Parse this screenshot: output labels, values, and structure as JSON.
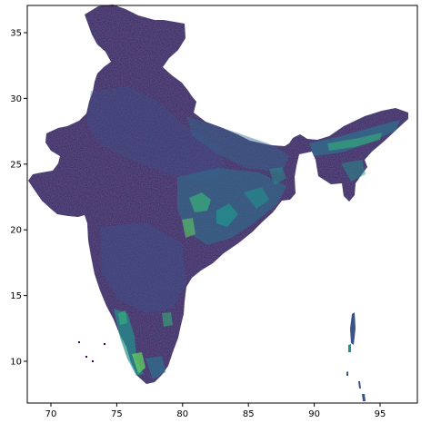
{
  "plot": {
    "type": "raster-map",
    "colormap": "viridis",
    "colors": {
      "dark": "#440154",
      "mid_dark": "#3b528b",
      "mid": "#21918c",
      "light": "#5ec962",
      "bright": "#fde725",
      "background": "#ffffff"
    },
    "x_ticks": [
      "70",
      "75",
      "80",
      "85",
      "90",
      "95"
    ],
    "y_ticks": [
      "35",
      "30",
      "25",
      "20",
      "15",
      "10"
    ]
  }
}
